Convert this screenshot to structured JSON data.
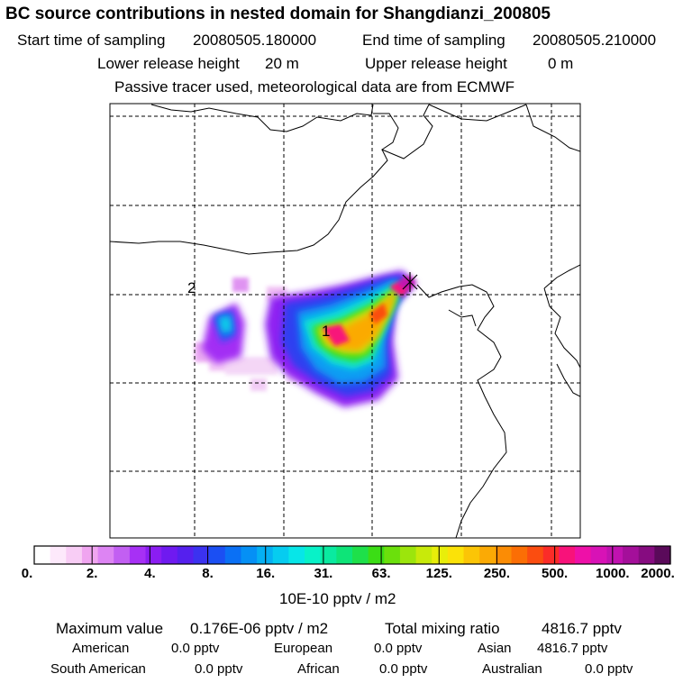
{
  "header": {
    "title": "BC  source contributions in nested domain for Shangdianzi_200805",
    "start_label": "Start time of sampling",
    "start_value": "20080505.180000",
    "end_label": "End time of sampling",
    "end_value": "20080505.210000",
    "lower_label": "Lower release height",
    "lower_value": "20 m",
    "upper_label": "Upper release height",
    "upper_value": "0 m",
    "tracer_note": "Passive tracer used, meteorological data are from ECMWF"
  },
  "map": {
    "labels": {
      "cluster_1": "1",
      "cluster_2": "2"
    },
    "receptor_marker": "receptor-x-marker"
  },
  "colorbar": {
    "colors": [
      "#ffffff",
      "#fde9fb",
      "#f8cdf5",
      "#f0a5f0",
      "#dd84f3",
      "#c25ff2",
      "#a730f5",
      "#8b1df2",
      "#6f1af0",
      "#5520ee",
      "#3b32f0",
      "#1b4ff3",
      "#0a70f5",
      "#0590f5",
      "#05b0f3",
      "#06ccf0",
      "#07e6e8",
      "#08f2c8",
      "#0aeaa0",
      "#0ee478",
      "#1ee04a",
      "#3bdd15",
      "#6be00c",
      "#9ce50c",
      "#c8ea0a",
      "#e8ee0a",
      "#fbe208",
      "#fbc506",
      "#fbaa05",
      "#fb8c05",
      "#fb6e05",
      "#fb4d10",
      "#fb2c28",
      "#f8127a",
      "#ee10a8",
      "#d812b6",
      "#c012b0",
      "#a40f9a",
      "#860c80",
      "#5a0a5a"
    ],
    "tick_labels": [
      "0.",
      "2.",
      "4.",
      "8.",
      "16.",
      "31.",
      "63.",
      "125.",
      "250.",
      "500.",
      "1000.",
      "2000."
    ],
    "units": "10E-10 pptv / m2"
  },
  "stats": {
    "max_label": "Maximum value",
    "max_value": "0.176E-06 pptv / m2",
    "total_label": "Total mixing ratio",
    "total_value": "4816.7 pptv"
  },
  "sources": [
    {
      "name": "American",
      "value": "0.0 pptv"
    },
    {
      "name": "European",
      "value": "0.0 pptv"
    },
    {
      "name": "Asian",
      "value": "4816.7 pptv"
    },
    {
      "name": "South American",
      "value": "0.0 pptv"
    },
    {
      "name": "African",
      "value": "0.0 pptv"
    },
    {
      "name": "Australian",
      "value": "0.0 pptv"
    }
  ]
}
